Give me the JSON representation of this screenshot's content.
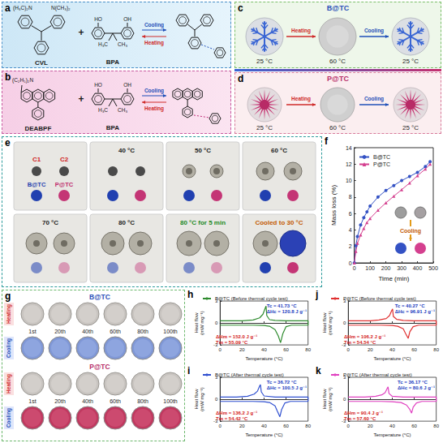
{
  "panels": {
    "a": {
      "letter": "a",
      "dye": {
        "name": "CVL",
        "groups": [
          "(H₃C)₂N",
          "N(CH₃)₂"
        ]
      },
      "plus": "+",
      "developer": {
        "name": "BPA",
        "groups": [
          "HO",
          "OH",
          "H₃C",
          "CH₃"
        ]
      },
      "forward": "Cooling",
      "reverse": "Heating"
    },
    "b": {
      "letter": "b",
      "dye": {
        "name": "DEABPF",
        "groups": [
          "(C₂H₅)₂N"
        ]
      },
      "plus": "+",
      "developer": {
        "name": "BPA",
        "groups": [
          "HO",
          "OH",
          "H₃C",
          "CH₃"
        ]
      },
      "forward": "Cooling",
      "reverse": "Heating"
    },
    "c": {
      "letter": "c",
      "title": "B@TC",
      "states": [
        "25 °C",
        "60 °C",
        "25 °C"
      ],
      "steps": [
        "Heating",
        "Cooling"
      ]
    },
    "d": {
      "letter": "d",
      "title": "P@TC",
      "states": [
        "25 °C",
        "60 °C",
        "25 °C"
      ],
      "steps": [
        "Heating",
        "Cooling"
      ]
    },
    "e": {
      "letter": "e",
      "samples": [
        "C1",
        "C2",
        "B@TC",
        "P@TC"
      ],
      "frames": [
        "40 °C",
        "50 °C",
        "60 °C",
        "70 °C",
        "80 °C",
        "80 °C for 5 min",
        "Cooled to 30 °C"
      ]
    },
    "g": {
      "letter": "g",
      "groups": [
        "B@TC",
        "P@TC"
      ],
      "rows": [
        "Heating",
        "Cooling"
      ],
      "cycles": [
        "1st",
        "20th",
        "40th",
        "60th",
        "80th",
        "100th"
      ]
    }
  },
  "chart_data": [
    {
      "panel": "f",
      "type": "line",
      "x": [
        0,
        10,
        20,
        40,
        60,
        80,
        100,
        150,
        200,
        250,
        300,
        350,
        400,
        450,
        480
      ],
      "series": [
        {
          "name": "B@TC",
          "color": "#3452c4",
          "marker": "circle",
          "values": [
            0,
            2.1,
            3.2,
            4.6,
            5.5,
            6.2,
            6.9,
            8.0,
            8.8,
            9.4,
            10.0,
            10.5,
            11.0,
            11.7,
            12.3
          ]
        },
        {
          "name": "P@TC",
          "color": "#d4408f",
          "marker": "triangle",
          "values": [
            0,
            1.4,
            2.4,
            3.4,
            4.2,
            4.9,
            5.4,
            6.4,
            7.3,
            8.1,
            8.9,
            9.7,
            10.6,
            11.4,
            12.0
          ]
        }
      ],
      "xlabel": "Time (min)",
      "ylabel": "Mass loss (%)",
      "xlim": [
        0,
        500
      ],
      "xticks": [
        0,
        100,
        200,
        300,
        400,
        500
      ],
      "ylim": [
        0,
        14
      ],
      "yticks": [
        0,
        2,
        4,
        6,
        8,
        10,
        12,
        14
      ],
      "legend": "top-left",
      "annotations": [
        "Cooling"
      ]
    },
    {
      "panel": "h",
      "type": "line",
      "x": [
        0,
        10,
        20,
        30,
        40,
        45,
        50,
        53,
        55,
        57,
        60,
        65,
        70,
        80,
        80,
        70,
        60,
        50,
        45,
        42.5,
        41.8,
        41,
        39,
        36,
        30,
        20,
        10,
        0
      ],
      "series": [
        {
          "name": "B@TC (Before thermal cycle test)",
          "color": "#2e8b2e",
          "values": [
            -0.3,
            -0.3,
            -0.3,
            -0.3,
            -0.35,
            -0.45,
            -0.9,
            -1.8,
            -2.7,
            -1.5,
            -0.5,
            -0.3,
            -0.3,
            -0.3,
            0.3,
            0.3,
            0.3,
            0.35,
            0.45,
            1.0,
            2.3,
            2.0,
            1.2,
            0.7,
            0.4,
            0.3,
            0.3,
            0.3
          ]
        }
      ],
      "xlabel": "Temperature (°C)",
      "ylabel": "Heat flow (mW mg⁻¹)",
      "xlim": [
        0,
        80
      ],
      "xticks": [
        0,
        20,
        40,
        60,
        80
      ],
      "ylim": [
        -3,
        3
      ],
      "yticks": [
        -3,
        0,
        3
      ],
      "legend": "top",
      "annotations": [
        "Tc = 41.73 °C",
        "ΔHc = 120.8 J g⁻¹",
        "ΔHm = 152.0 J g⁻¹",
        "Tm = 55.09 °C"
      ]
    },
    {
      "panel": "j",
      "type": "line",
      "x": [
        0,
        10,
        20,
        30,
        40,
        45,
        50,
        52,
        54.5,
        56,
        59,
        64,
        70,
        80,
        80,
        70,
        60,
        50,
        44,
        41,
        40.3,
        39.5,
        37.5,
        34.5,
        28,
        20,
        10,
        0
      ],
      "series": [
        {
          "name": "P@TC (Before thermal cycle test)",
          "color": "#e03030",
          "values": [
            -0.3,
            -0.3,
            -0.3,
            -0.3,
            -0.35,
            -0.45,
            -0.8,
            -1.4,
            -2.1,
            -1.2,
            -0.5,
            -0.3,
            -0.3,
            -0.3,
            0.3,
            0.3,
            0.3,
            0.35,
            0.5,
            0.9,
            1.9,
            1.7,
            1.0,
            0.6,
            0.4,
            0.3,
            0.3,
            0.3
          ]
        }
      ],
      "xlabel": "Temperature (°C)",
      "ylabel": "Heat flow (mW mg⁻¹)",
      "xlim": [
        0,
        80
      ],
      "xticks": [
        0,
        20,
        40,
        60,
        80
      ],
      "ylim": [
        -3,
        3
      ],
      "yticks": [
        -3,
        0,
        3
      ],
      "legend": "top",
      "annotations": [
        "Tc = 40.27 °C",
        "ΔHc = 96.91 J g⁻¹",
        "ΔHm = 106.2 J g⁻¹",
        "Tm = 54.54 °C"
      ]
    },
    {
      "panel": "i",
      "type": "line",
      "x": [
        0,
        10,
        20,
        30,
        40,
        45,
        50,
        52,
        54.4,
        56,
        59,
        64,
        70,
        80,
        80,
        70,
        60,
        50,
        40,
        37.5,
        36.7,
        36,
        34,
        31,
        25,
        15,
        5,
        0
      ],
      "series": [
        {
          "name": "B@TC (After thermal cycle test)",
          "color": "#3050d0",
          "values": [
            -0.3,
            -0.3,
            -0.3,
            -0.3,
            -0.35,
            -0.45,
            -0.9,
            -1.6,
            -2.4,
            -1.4,
            -0.5,
            -0.3,
            -0.3,
            -0.3,
            0.3,
            0.3,
            0.3,
            0.3,
            0.45,
            1.0,
            2.0,
            1.8,
            1.1,
            0.7,
            0.4,
            0.3,
            0.3,
            0.3
          ]
        }
      ],
      "xlabel": "Temperature (°C)",
      "ylabel": "Heat flow (mW mg⁻¹)",
      "xlim": [
        0,
        80
      ],
      "xticks": [
        0,
        20,
        40,
        60,
        80
      ],
      "ylim": [
        -3,
        3
      ],
      "yticks": [
        -3,
        0,
        3
      ],
      "legend": "top",
      "annotations": [
        "Tc = 36.72 °C",
        "ΔHc = 100.5 J g⁻¹",
        "ΔHm = 136.2 J g⁻¹",
        "Tm = 54.42 °C"
      ]
    },
    {
      "panel": "k",
      "type": "line",
      "x": [
        0,
        10,
        20,
        30,
        40,
        48,
        53,
        56,
        57.6,
        59,
        62,
        67,
        72,
        80,
        80,
        70,
        60,
        50,
        40,
        37,
        36.2,
        35.5,
        33.5,
        30.5,
        25,
        15,
        5,
        0
      ],
      "series": [
        {
          "name": "P@TC (After thermal cycle test)",
          "color": "#e040c0",
          "values": [
            -0.3,
            -0.3,
            -0.3,
            -0.3,
            -0.35,
            -0.45,
            -0.8,
            -1.4,
            -1.9,
            -1.1,
            -0.5,
            -0.3,
            -0.3,
            -0.3,
            0.3,
            0.3,
            0.3,
            0.3,
            0.4,
            0.8,
            1.7,
            1.5,
            0.9,
            0.6,
            0.4,
            0.3,
            0.3,
            0.3
          ]
        }
      ],
      "xlabel": "Temperature (°C)",
      "ylabel": "Heat flow (mW mg⁻¹)",
      "xlim": [
        0,
        80
      ],
      "xticks": [
        0,
        20,
        40,
        60,
        80
      ],
      "ylim": [
        -3,
        3
      ],
      "yticks": [
        -3,
        0,
        3
      ],
      "legend": "top",
      "annotations": [
        "Tc = 36.17 °C",
        "ΔHc = 80.6 J g⁻¹",
        "ΔHm = 90.4 J g⁻¹",
        "Tm = 57.60 °C"
      ]
    }
  ]
}
